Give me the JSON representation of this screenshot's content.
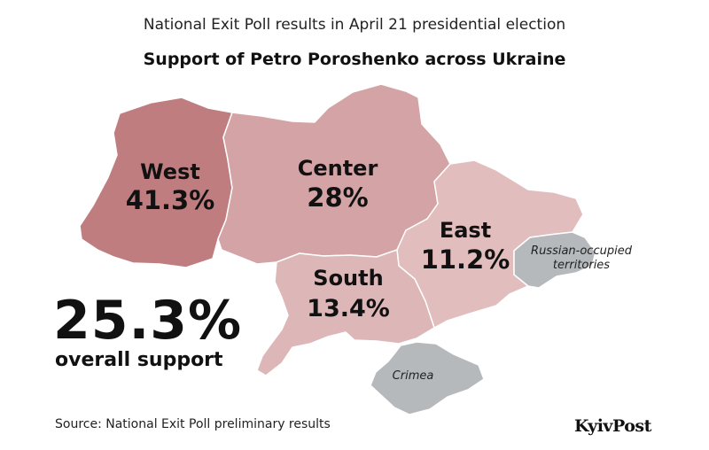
{
  "header": {
    "subtitle": "National Exit Poll results in April 21 presidential election",
    "title": "Support of Petro Poroshenko across Ukraine"
  },
  "regions": [
    {
      "key": "west",
      "name": "West",
      "value": "41.3%",
      "support_pct": 41.3,
      "color": "#bf7d80"
    },
    {
      "key": "center",
      "name": "Center",
      "value": "28%",
      "support_pct": 28,
      "color": "#d3a3a5"
    },
    {
      "key": "south",
      "name": "South",
      "value": "13.4%",
      "support_pct": 13.4,
      "color": "#ddb6b7"
    },
    {
      "key": "east",
      "name": "East",
      "value": "11.2%",
      "support_pct": 11.2,
      "color": "#e2bdbe"
    }
  ],
  "occupied": {
    "donbas_label_line1": "Russian-occupied",
    "donbas_label_line2": "territories",
    "crimea_label": "Crimea",
    "color": "#b5b9bc"
  },
  "overall": {
    "value": "25.3%",
    "label": "overall support"
  },
  "footer": {
    "source": "Source: National Exit Poll preliminary results",
    "logo": "KyivPost"
  }
}
